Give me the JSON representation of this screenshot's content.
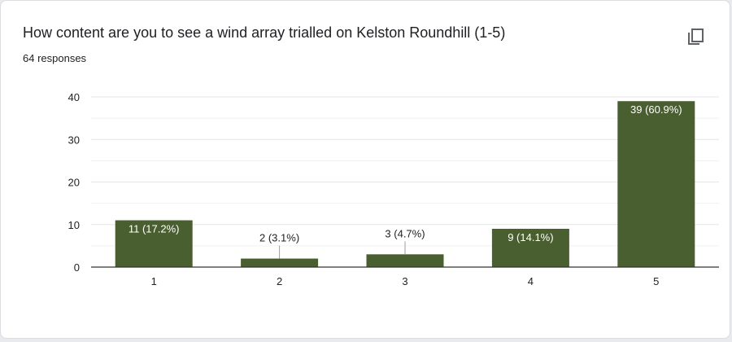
{
  "card": {
    "title": "How content are you to see a wind array trialled on Kelston Roundhill (1-5)",
    "responses": "64 responses",
    "copy_icon": "copy-icon"
  },
  "colors": {
    "bar": "#4a5f2f",
    "grid": "#e6e6e6",
    "axis": "#333333",
    "label_dark": "#222222",
    "label_light": "#ffffff"
  },
  "chart_data": {
    "type": "bar",
    "categories": [
      "1",
      "2",
      "3",
      "4",
      "5"
    ],
    "values": [
      11,
      2,
      3,
      9,
      39
    ],
    "data_labels": [
      "11 (17.2%)",
      "2 (3.1%)",
      "3 (4.7%)",
      "9 (14.1%)",
      "39 (60.9%)"
    ],
    "ylim": [
      0,
      40
    ],
    "yticks": [
      0,
      10,
      20,
      30,
      40
    ],
    "grid": true,
    "minor_grid": true
  }
}
